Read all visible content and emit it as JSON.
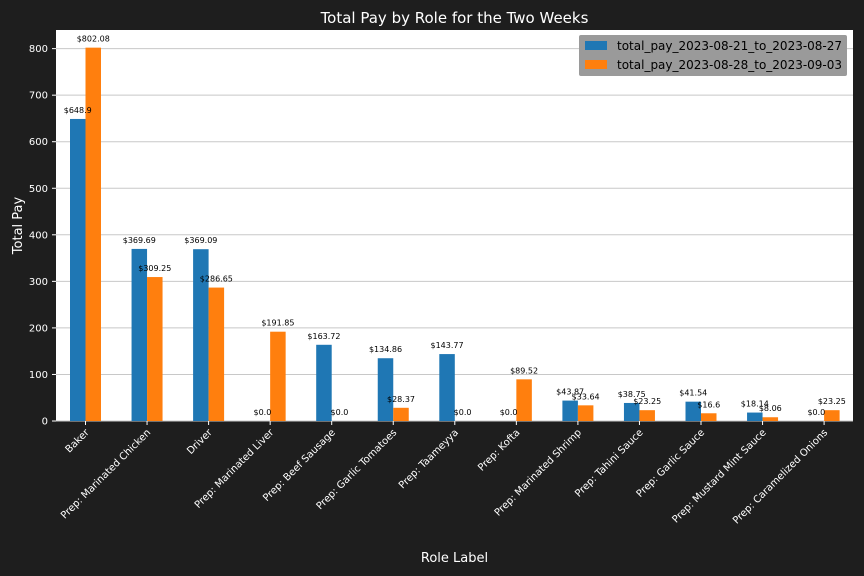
{
  "chart_data": {
    "type": "bar",
    "title": "Total Pay by Role for the Two Weeks",
    "xlabel": "Role Label",
    "ylabel": "Total Pay",
    "ylim": [
      0,
      840
    ],
    "yticks": [
      0,
      100,
      200,
      300,
      400,
      500,
      600,
      700,
      800
    ],
    "grid": true,
    "legend_position": "top-right",
    "categories": [
      "Baker",
      "Prep: Marinated Chicken",
      "Driver",
      "Prep: Marinated Liver",
      "Prep: Beef Sausage",
      "Prep: Garlic Tomatoes",
      "Prep: Taameyya",
      "Prep: Kofta",
      "Prep: Marinated Shrimp",
      "Prep: Tahini Sauce",
      "Prep: Garlic Sauce",
      "Prep: Mustard Mint Sauce",
      "Prep: Caramelized Onions"
    ],
    "series": [
      {
        "name": "total_pay_2023-08-21_to_2023-08-27",
        "color": "#1f77b4",
        "values": [
          648.9,
          369.69,
          369.09,
          0.0,
          163.72,
          134.86,
          143.77,
          0.0,
          43.87,
          38.75,
          41.54,
          18.14,
          0.0
        ],
        "labels": [
          "$648.9",
          "$369.69",
          "$369.09",
          "$0.0",
          "$163.72",
          "$134.86",
          "$143.77",
          "$0.0",
          "$43.87",
          "$38.75",
          "$41.54",
          "$18.14",
          "$0.0"
        ]
      },
      {
        "name": "total_pay_2023-08-28_to_2023-09-03",
        "color": "#ff7f0e",
        "values": [
          802.08,
          309.25,
          286.65,
          191.85,
          0.0,
          28.37,
          0.0,
          89.52,
          33.64,
          23.25,
          16.6,
          8.06,
          23.25
        ],
        "labels": [
          "$802.08",
          "$309.25",
          "$286.65",
          "$191.85",
          "$0.0",
          "$28.37",
          "$0.0",
          "$89.52",
          "$33.64",
          "$23.25",
          "$16.6",
          "$8.06",
          "$23.25"
        ]
      }
    ]
  },
  "colors": {
    "background": "#1e1e1e",
    "plot_background": "#ffffff",
    "grid": "#c8c8c8",
    "legend_background": "#9a9a9a"
  }
}
